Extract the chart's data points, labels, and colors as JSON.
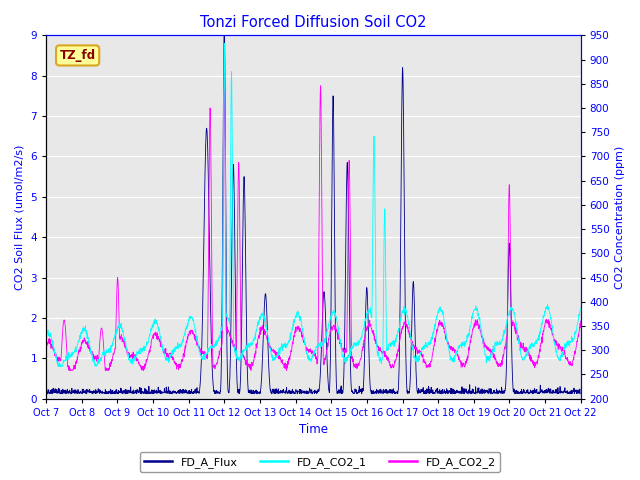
{
  "title": "Tonzi Forced Diffusion Soil CO2",
  "xlabel": "Time",
  "ylabel_left": "CO2 Soil Flux (umol/m2/s)",
  "ylabel_right": "CO2 Concentration (ppm)",
  "ylim_left": [
    0.0,
    9.0
  ],
  "ylim_right": [
    200,
    950
  ],
  "yticks_left": [
    0.0,
    1.0,
    2.0,
    3.0,
    4.0,
    5.0,
    6.0,
    7.0,
    8.0,
    9.0
  ],
  "yticks_right": [
    200,
    250,
    300,
    350,
    400,
    450,
    500,
    550,
    600,
    650,
    700,
    750,
    800,
    850,
    900,
    950
  ],
  "xtick_labels": [
    "Oct 7",
    "Oct 8",
    "Oct 9",
    "Oct 10",
    "Oct 11",
    "Oct 12",
    "Oct 13",
    "Oct 14",
    "Oct 15",
    "Oct 16",
    "Oct 17",
    "Oct 18",
    "Oct 19",
    "Oct 20",
    "Oct 21",
    "Oct 22"
  ],
  "color_flux": "#00008B",
  "color_co2_1": "#00FFFF",
  "color_co2_2": "#FF00FF",
  "legend_label_flux": "FD_A_Flux",
  "legend_label_co2_1": "FD_A_CO2_1",
  "legend_label_co2_2": "FD_A_CO2_2",
  "annotation_text": "TZ_fd",
  "annotation_color": "#8B0000",
  "annotation_bg": "#FFFF99",
  "annotation_border": "#DAA520",
  "background_color": "#E8E8E8",
  "grid_color": "white",
  "n_points": 2000
}
